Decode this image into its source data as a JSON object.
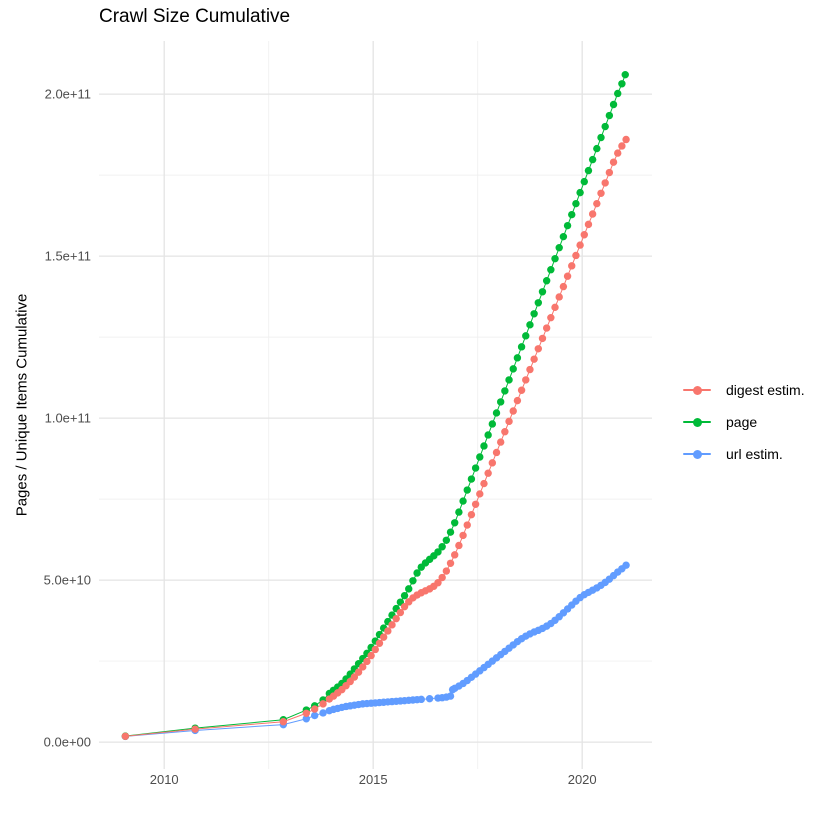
{
  "title": "Crawl Size Cumulative",
  "y_axis": {
    "title": "Pages / Unique Items Cumulative",
    "ticks": [
      {
        "label": "0.0e+00",
        "value": 0
      },
      {
        "label": "5.0e+10",
        "value": 50000000000.0
      },
      {
        "label": "1.0e+11",
        "value": 100000000000.0
      },
      {
        "label": "1.5e+11",
        "value": 150000000000.0
      },
      {
        "label": "2.0e+11",
        "value": 200000000000.0
      }
    ],
    "minor_values": [
      25000000000.0,
      75000000000.0,
      125000000000.0,
      175000000000.0
    ]
  },
  "x_axis": {
    "title": "",
    "ticks": [
      {
        "label": "2010",
        "value": 2010
      },
      {
        "label": "2015",
        "value": 2015
      },
      {
        "label": "2020",
        "value": 2020
      }
    ],
    "minor_values": [
      2012.5,
      2017.5
    ]
  },
  "legend": {
    "items": [
      {
        "label": "digest estim.",
        "color": "#F8766D"
      },
      {
        "label": "page",
        "color": "#00BA38"
      },
      {
        "label": "url estim.",
        "color": "#619CFF"
      }
    ]
  },
  "colors": {
    "background": "#FFFFFF",
    "grid_major": "#E4E4E4",
    "grid_minor": "#F0F0F0",
    "axis_text": "#4D4D4D"
  },
  "chart_data": {
    "type": "scatter",
    "title": "Crawl Size Cumulative",
    "xlabel": "",
    "ylabel": "Pages / Unique Items Cumulative",
    "xlim": [
      2008.44,
      2021.67
    ],
    "ylim": [
      -8300000000.0,
      216400000000.0
    ],
    "grid": true,
    "legend_position": "right",
    "series": [
      {
        "name": "digest estim.",
        "color": "#F8766D",
        "points": [
          [
            2009.07,
            1800000000.0
          ],
          [
            2010.74,
            4000000000.0
          ],
          [
            2012.85,
            6300000000.0
          ],
          [
            2013.4,
            8900000000.0
          ],
          [
            2013.6,
            10200000000.0
          ],
          [
            2013.8,
            11800000000.0
          ],
          [
            2013.95,
            13300000000.0
          ],
          [
            2014.05,
            14200000000.0
          ],
          [
            2014.15,
            15200000000.0
          ],
          [
            2014.25,
            16200000000.0
          ],
          [
            2014.35,
            17400000000.0
          ],
          [
            2014.45,
            18700000000.0
          ],
          [
            2014.55,
            20100000000.0
          ],
          [
            2014.65,
            21600000000.0
          ],
          [
            2014.75,
            23200000000.0
          ],
          [
            2014.85,
            24900000000.0
          ],
          [
            2014.95,
            26700000000.0
          ],
          [
            2015.05,
            28600000000.0
          ],
          [
            2015.15,
            30500000000.0
          ],
          [
            2015.25,
            32400000000.0
          ],
          [
            2015.35,
            34300000000.0
          ],
          [
            2015.45,
            36200000000.0
          ],
          [
            2015.55,
            38100000000.0
          ],
          [
            2015.65,
            40000000000.0
          ],
          [
            2015.75,
            41800000000.0
          ],
          [
            2015.85,
            43300000000.0
          ],
          [
            2015.95,
            44500000000.0
          ],
          [
            2016.05,
            45400000000.0
          ],
          [
            2016.15,
            46100000000.0
          ],
          [
            2016.25,
            46700000000.0
          ],
          [
            2016.35,
            47300000000.0
          ],
          [
            2016.45,
            48100000000.0
          ],
          [
            2016.55,
            49200000000.0
          ],
          [
            2016.65,
            50800000000.0
          ],
          [
            2016.75,
            52800000000.0
          ],
          [
            2016.85,
            55200000000.0
          ],
          [
            2016.95,
            57800000000.0
          ],
          [
            2017.05,
            60700000000.0
          ],
          [
            2017.15,
            63800000000.0
          ],
          [
            2017.25,
            67000000000.0
          ],
          [
            2017.35,
            70200000000.0
          ],
          [
            2017.45,
            73400000000.0
          ],
          [
            2017.55,
            76600000000.0
          ],
          [
            2017.65,
            79800000000.0
          ],
          [
            2017.75,
            83000000000.0
          ],
          [
            2017.85,
            86200000000.0
          ],
          [
            2017.95,
            89400000000.0
          ],
          [
            2018.05,
            92600000000.0
          ],
          [
            2018.15,
            95800000000.0
          ],
          [
            2018.25,
            99000000000.0
          ],
          [
            2018.35,
            102200000000.0
          ],
          [
            2018.45,
            105400000000.0
          ],
          [
            2018.55,
            108600000000.0
          ],
          [
            2018.65,
            111800000000.0
          ],
          [
            2018.75,
            115000000000.0
          ],
          [
            2018.85,
            118200000000.0
          ],
          [
            2018.95,
            121400000000.0
          ],
          [
            2019.05,
            124600000000.0
          ],
          [
            2019.15,
            127800000000.0
          ],
          [
            2019.25,
            131000000000.0
          ],
          [
            2019.35,
            134200000000.0
          ],
          [
            2019.45,
            137400000000.0
          ],
          [
            2019.55,
            140600000000.0
          ],
          [
            2019.65,
            143800000000.0
          ],
          [
            2019.75,
            147000000000.0
          ],
          [
            2019.85,
            150200000000.0
          ],
          [
            2019.95,
            153400000000.0
          ],
          [
            2020.05,
            156600000000.0
          ],
          [
            2020.15,
            159800000000.0
          ],
          [
            2020.25,
            163000000000.0
          ],
          [
            2020.35,
            166200000000.0
          ],
          [
            2020.45,
            169400000000.0
          ],
          [
            2020.55,
            172600000000.0
          ],
          [
            2020.65,
            175800000000.0
          ],
          [
            2020.75,
            179000000000.0
          ],
          [
            2020.85,
            181800000000.0
          ],
          [
            2020.95,
            184000000000.0
          ],
          [
            2021.05,
            186000000000.0
          ]
        ]
      },
      {
        "name": "page",
        "color": "#00BA38",
        "points": [
          [
            2009.07,
            1850000000.0
          ],
          [
            2010.74,
            4300000000.0
          ],
          [
            2012.85,
            6900000000.0
          ],
          [
            2013.4,
            9900000000.0
          ],
          [
            2013.6,
            11200000000.0
          ],
          [
            2013.8,
            13000000000.0
          ],
          [
            2013.95,
            15000000000.0
          ],
          [
            2014.05,
            16000000000.0
          ],
          [
            2014.15,
            17000000000.0
          ],
          [
            2014.25,
            18100000000.0
          ],
          [
            2014.35,
            19500000000.0
          ],
          [
            2014.45,
            21000000000.0
          ],
          [
            2014.55,
            22600000000.0
          ],
          [
            2014.65,
            24200000000.0
          ],
          [
            2014.75,
            25800000000.0
          ],
          [
            2014.85,
            27400000000.0
          ],
          [
            2014.95,
            29200000000.0
          ],
          [
            2015.05,
            31200000000.0
          ],
          [
            2015.15,
            33200000000.0
          ],
          [
            2015.25,
            35200000000.0
          ],
          [
            2015.35,
            37200000000.0
          ],
          [
            2015.45,
            39200000000.0
          ],
          [
            2015.55,
            41200000000.0
          ],
          [
            2015.65,
            43200000000.0
          ],
          [
            2015.75,
            45200000000.0
          ],
          [
            2015.85,
            47300000000.0
          ],
          [
            2015.95,
            49800000000.0
          ],
          [
            2016.05,
            52200000000.0
          ],
          [
            2016.15,
            54000000000.0
          ],
          [
            2016.25,
            55300000000.0
          ],
          [
            2016.35,
            56400000000.0
          ],
          [
            2016.45,
            57500000000.0
          ],
          [
            2016.55,
            58700000000.0
          ],
          [
            2016.65,
            60300000000.0
          ],
          [
            2016.75,
            62300000000.0
          ],
          [
            2016.85,
            64800000000.0
          ],
          [
            2016.95,
            67700000000.0
          ],
          [
            2017.05,
            71000000000.0
          ],
          [
            2017.15,
            74400000000.0
          ],
          [
            2017.25,
            77800000000.0
          ],
          [
            2017.35,
            81200000000.0
          ],
          [
            2017.45,
            84600000000.0
          ],
          [
            2017.55,
            88000000000.0
          ],
          [
            2017.65,
            91400000000.0
          ],
          [
            2017.75,
            94800000000.0
          ],
          [
            2017.85,
            98200000000.0
          ],
          [
            2017.95,
            101600000000.0
          ],
          [
            2018.05,
            105000000000.0
          ],
          [
            2018.15,
            108400000000.0
          ],
          [
            2018.25,
            111800000000.0
          ],
          [
            2018.35,
            115200000000.0
          ],
          [
            2018.45,
            118600000000.0
          ],
          [
            2018.55,
            122000000000.0
          ],
          [
            2018.65,
            125400000000.0
          ],
          [
            2018.75,
            128800000000.0
          ],
          [
            2018.85,
            132200000000.0
          ],
          [
            2018.95,
            135600000000.0
          ],
          [
            2019.05,
            139000000000.0
          ],
          [
            2019.15,
            142400000000.0
          ],
          [
            2019.25,
            145800000000.0
          ],
          [
            2019.35,
            149200000000.0
          ],
          [
            2019.45,
            152600000000.0
          ],
          [
            2019.55,
            156000000000.0
          ],
          [
            2019.65,
            159400000000.0
          ],
          [
            2019.75,
            162800000000.0
          ],
          [
            2019.85,
            166200000000.0
          ],
          [
            2019.95,
            169600000000.0
          ],
          [
            2020.05,
            173000000000.0
          ],
          [
            2020.15,
            176400000000.0
          ],
          [
            2020.25,
            179800000000.0
          ],
          [
            2020.35,
            183200000000.0
          ],
          [
            2020.45,
            186600000000.0
          ],
          [
            2020.55,
            190000000000.0
          ],
          [
            2020.65,
            193400000000.0
          ],
          [
            2020.75,
            196800000000.0
          ],
          [
            2020.85,
            200200000000.0
          ],
          [
            2020.95,
            203200000000.0
          ],
          [
            2021.03,
            206000000000.0
          ]
        ]
      },
      {
        "name": "url estim.",
        "color": "#619CFF",
        "points": [
          [
            2009.07,
            1750000000.0
          ],
          [
            2010.74,
            3600000000.0
          ],
          [
            2012.85,
            5400000000.0
          ],
          [
            2013.4,
            7200000000.0
          ],
          [
            2013.6,
            8200000000.0
          ],
          [
            2013.8,
            9000000000.0
          ],
          [
            2013.95,
            9700000000.0
          ],
          [
            2014.05,
            10100000000.0
          ],
          [
            2014.15,
            10400000000.0
          ],
          [
            2014.25,
            10700000000.0
          ],
          [
            2014.35,
            11000000000.0
          ],
          [
            2014.45,
            11200000000.0
          ],
          [
            2014.55,
            11400000000.0
          ],
          [
            2014.65,
            11600000000.0
          ],
          [
            2014.75,
            11800000000.0
          ],
          [
            2014.85,
            11900000000.0
          ],
          [
            2014.95,
            12000000000.0
          ],
          [
            2015.05,
            12100000000.0
          ],
          [
            2015.15,
            12200000000.0
          ],
          [
            2015.25,
            12300000000.0
          ],
          [
            2015.35,
            12400000000.0
          ],
          [
            2015.45,
            12500000000.0
          ],
          [
            2015.55,
            12600000000.0
          ],
          [
            2015.65,
            12700000000.0
          ],
          [
            2015.75,
            12800000000.0
          ],
          [
            2015.85,
            12900000000.0
          ],
          [
            2015.95,
            13000000000.0
          ],
          [
            2016.05,
            13100000000.0
          ],
          [
            2016.15,
            13200000000.0
          ],
          [
            2016.35,
            13400000000.0
          ],
          [
            2016.55,
            13600000000.0
          ],
          [
            2016.65,
            13700000000.0
          ],
          [
            2016.75,
            13900000000.0
          ],
          [
            2016.85,
            14200000000.0
          ],
          [
            2016.9,
            16200000000.0
          ],
          [
            2016.95,
            16600000000.0
          ],
          [
            2017.05,
            17300000000.0
          ],
          [
            2017.15,
            18100000000.0
          ],
          [
            2017.25,
            19000000000.0
          ],
          [
            2017.35,
            20000000000.0
          ],
          [
            2017.45,
            21000000000.0
          ],
          [
            2017.55,
            22000000000.0
          ],
          [
            2017.65,
            23000000000.0
          ],
          [
            2017.75,
            24000000000.0
          ],
          [
            2017.85,
            25000000000.0
          ],
          [
            2017.95,
            26000000000.0
          ],
          [
            2018.05,
            27000000000.0
          ],
          [
            2018.15,
            28000000000.0
          ],
          [
            2018.25,
            29000000000.0
          ],
          [
            2018.35,
            30000000000.0
          ],
          [
            2018.45,
            31000000000.0
          ],
          [
            2018.55,
            31900000000.0
          ],
          [
            2018.65,
            32700000000.0
          ],
          [
            2018.75,
            33400000000.0
          ],
          [
            2018.85,
            34000000000.0
          ],
          [
            2018.95,
            34500000000.0
          ],
          [
            2019.05,
            35100000000.0
          ],
          [
            2019.15,
            35800000000.0
          ],
          [
            2019.25,
            36600000000.0
          ],
          [
            2019.35,
            37600000000.0
          ],
          [
            2019.45,
            38700000000.0
          ],
          [
            2019.55,
            39900000000.0
          ],
          [
            2019.65,
            41100000000.0
          ],
          [
            2019.75,
            42300000000.0
          ],
          [
            2019.85,
            43500000000.0
          ],
          [
            2019.95,
            44600000000.0
          ],
          [
            2020.05,
            45500000000.0
          ],
          [
            2020.15,
            46200000000.0
          ],
          [
            2020.25,
            46900000000.0
          ],
          [
            2020.35,
            47600000000.0
          ],
          [
            2020.45,
            48400000000.0
          ],
          [
            2020.55,
            49300000000.0
          ],
          [
            2020.65,
            50300000000.0
          ],
          [
            2020.75,
            51400000000.0
          ],
          [
            2020.85,
            52500000000.0
          ],
          [
            2020.95,
            53500000000.0
          ],
          [
            2021.05,
            54600000000.0
          ]
        ]
      }
    ]
  }
}
